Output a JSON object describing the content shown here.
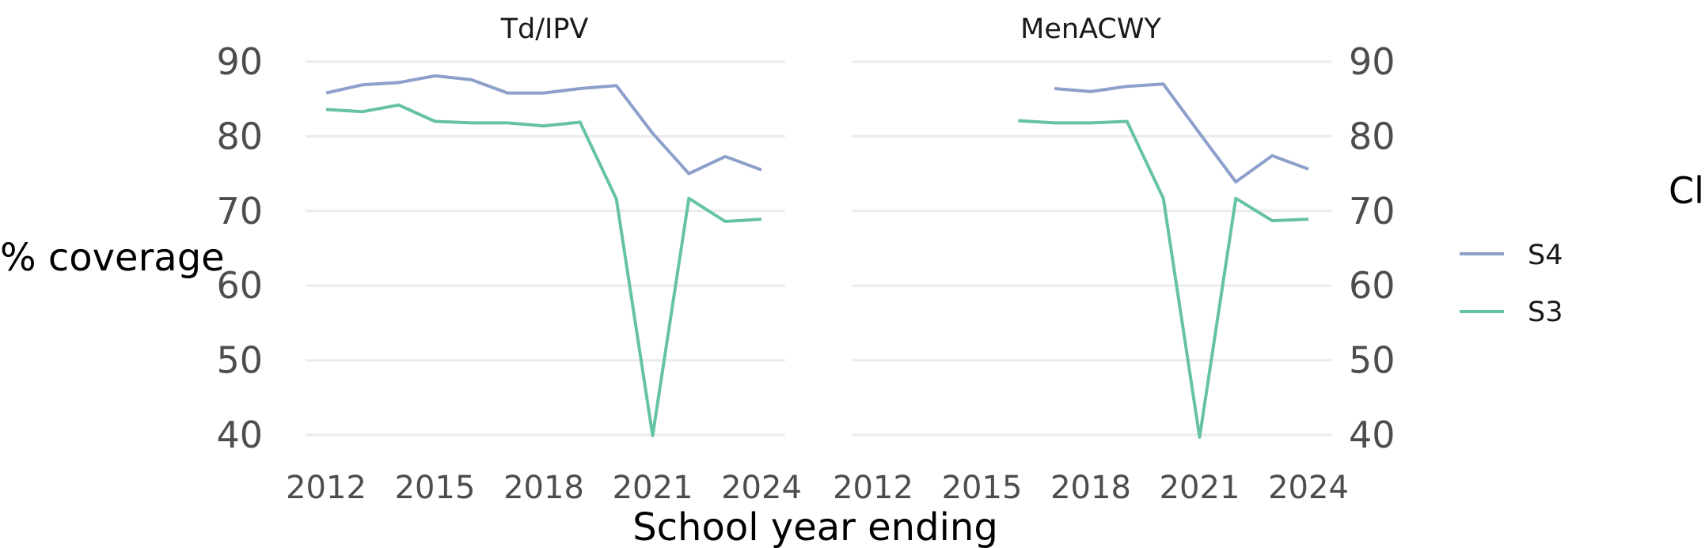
{
  "chart_data": {
    "type": "line",
    "xlabel": "School year ending",
    "ylabel": "% coverage",
    "ylim": [
      40,
      90
    ],
    "yticks": [
      40,
      50,
      60,
      70,
      80,
      90
    ],
    "xlim": [
      2012,
      2024
    ],
    "xticks": [
      2012,
      2015,
      2018,
      2021,
      2024
    ],
    "grid": "horizontal major",
    "legend": {
      "title": "Class year",
      "position": "right",
      "entries": [
        {
          "name": "S4",
          "color": "#8da0cb"
        },
        {
          "name": "S3",
          "color": "#66c2a5"
        }
      ]
    },
    "panels": [
      {
        "title": "Td/IPV",
        "series": [
          {
            "name": "S4",
            "color": "#8da0cb",
            "x": [
              2012,
              2013,
              2014,
              2015,
              2016,
              2017,
              2018,
              2019,
              2020,
              2021,
              2022,
              2023,
              2024
            ],
            "y": [
              85.8,
              86.9,
              87.2,
              88.1,
              87.6,
              85.8,
              85.8,
              86.4,
              86.8,
              80.4,
              75.0,
              77.3,
              75.5
            ]
          },
          {
            "name": "S3",
            "color": "#66c2a5",
            "x": [
              2012,
              2013,
              2014,
              2015,
              2016,
              2017,
              2018,
              2019,
              2020,
              2021,
              2022,
              2023,
              2024
            ],
            "y": [
              83.6,
              83.3,
              84.2,
              82.0,
              81.8,
              81.8,
              81.4,
              81.9,
              71.6,
              39.9,
              71.7,
              68.6,
              68.9
            ]
          }
        ]
      },
      {
        "title": "MenACWY",
        "series": [
          {
            "name": "S4",
            "color": "#8da0cb",
            "x": [
              2017,
              2018,
              2019,
              2020,
              2021,
              2022,
              2023,
              2024
            ],
            "y": [
              86.4,
              86.0,
              86.7,
              87.0,
              80.4,
              73.9,
              77.4,
              75.6
            ]
          },
          {
            "name": "S3",
            "color": "#66c2a5",
            "x": [
              2016,
              2017,
              2018,
              2019,
              2020,
              2021,
              2022,
              2023,
              2024
            ],
            "y": [
              82.1,
              81.8,
              81.8,
              82.0,
              71.7,
              39.7,
              71.7,
              68.7,
              68.9
            ]
          }
        ]
      }
    ]
  }
}
